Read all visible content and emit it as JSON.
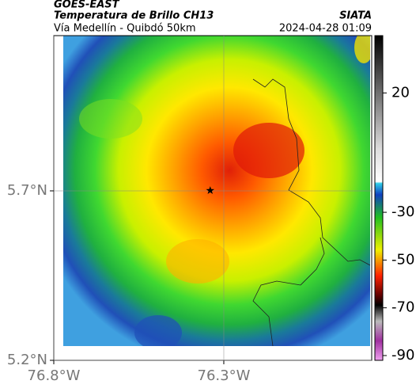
{
  "header": {
    "source": "GOES-EAST",
    "title": "Temperatura de Brillo CH13",
    "subtitle": "Vía Medellín - Quibdó 50km",
    "brand": "SIATA",
    "timestamp": "2024-04-28 01:09"
  },
  "map": {
    "xlim": [
      -76.8,
      -75.865
    ],
    "ylim": [
      5.2,
      6.158
    ],
    "xticks": [
      {
        "value": -76.8,
        "label": "76.8°W"
      },
      {
        "value": -76.3,
        "label": "76.3°W"
      }
    ],
    "yticks": [
      {
        "value": 5.2,
        "label": "5.2°N"
      },
      {
        "value": 5.7,
        "label": "5.7°N"
      }
    ],
    "marker": {
      "lon": -76.34,
      "lat": 5.701
    }
  },
  "colorbar": {
    "clim": [
      -92,
      44
    ],
    "ticks": [
      20,
      -30,
      -50,
      -70,
      -90
    ]
  }
}
